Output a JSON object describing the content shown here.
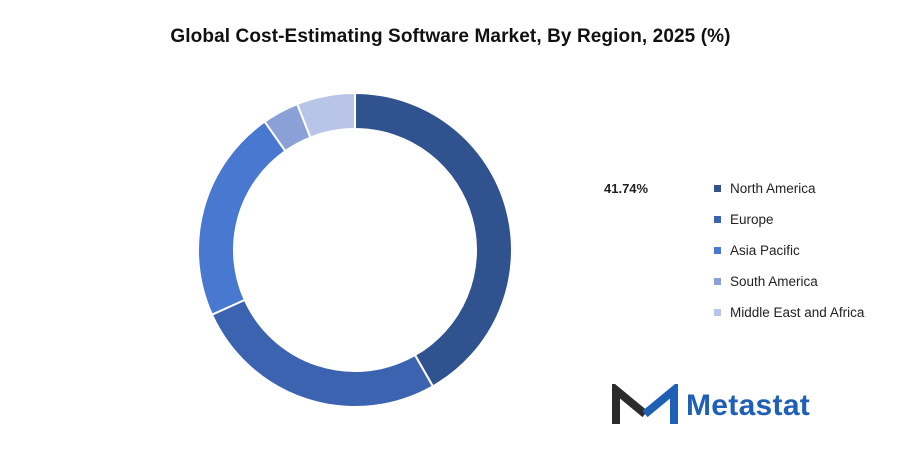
{
  "chart_data": {
    "type": "pie",
    "title": "Global Cost-Estimating Software Market, By Region, 2025 (%)",
    "donut": true,
    "categories": [
      "North America",
      "Europe",
      "Asia Pacific",
      "South America",
      "Middle East and Africa"
    ],
    "values": [
      41.74,
      26.5,
      22.0,
      3.76,
      6.0
    ],
    "colors": [
      "#30528f",
      "#3c63b0",
      "#4878d0",
      "#8ca0d8",
      "#b8c5e8"
    ],
    "data_labels": [
      "41.74%"
    ],
    "legend": "right"
  },
  "logo": {
    "text": "Metastat",
    "colors": {
      "dark": "#2b2b2b",
      "accent": "#1f5fb6"
    }
  }
}
